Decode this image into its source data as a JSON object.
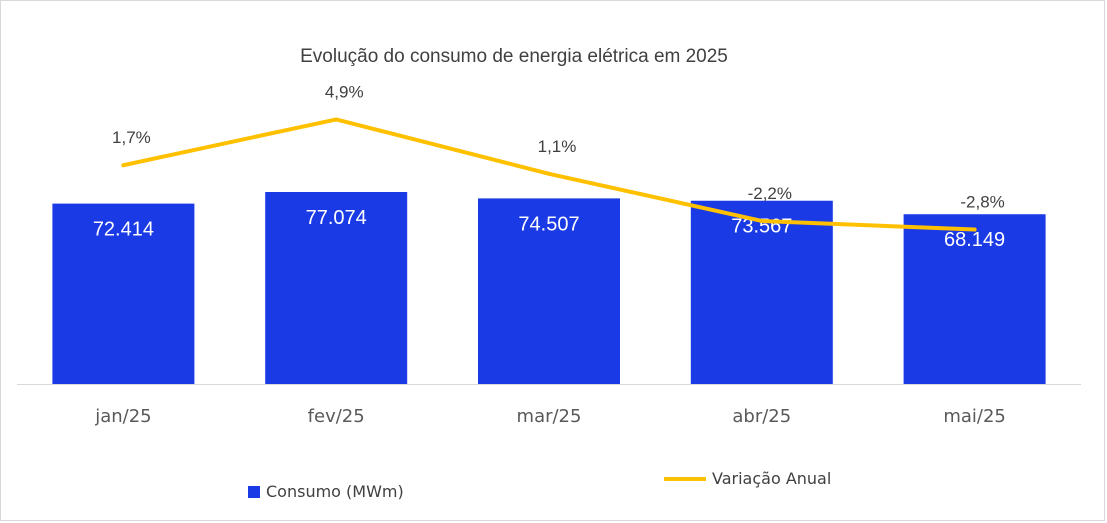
{
  "chart_data": {
    "type": "bar+line",
    "title": "Evolução do consumo de energia elétrica em 2025",
    "categories": [
      "jan/25",
      "fev/25",
      "mar/25",
      "abr/25",
      "mai/25"
    ],
    "series": [
      {
        "name": "Consumo (MWm)",
        "type": "bar",
        "color": "#1a3ae6",
        "values": [
          72414,
          77074,
          74507,
          73567,
          68149
        ],
        "labels": [
          "72.414",
          "77.074",
          "74.507",
          "73.567",
          "68.149"
        ]
      },
      {
        "name": "Variação Anual",
        "type": "line",
        "color": "#ffc000",
        "values": [
          1.7,
          4.9,
          1.1,
          -2.2,
          -2.8
        ],
        "labels": [
          "1,7%",
          "4,9%",
          "1,1%",
          "-2,2%",
          "-2,8%"
        ]
      }
    ],
    "grid": false,
    "legend_position": "bottom"
  }
}
